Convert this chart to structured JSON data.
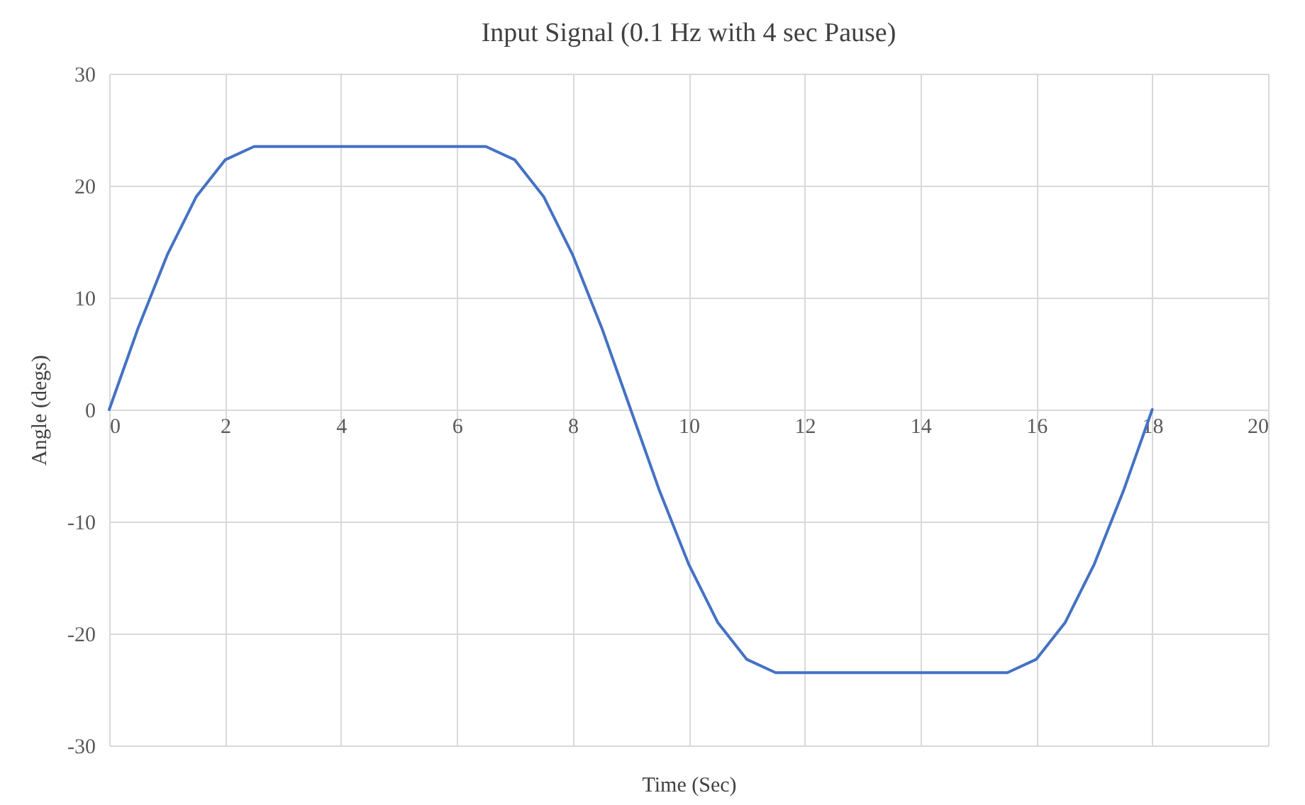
{
  "chart_data": {
    "type": "line",
    "title": "Input Signal (0.1 Hz with 4 sec Pause)",
    "xlabel": "Time (Sec)",
    "ylabel": "Angle (degs)",
    "x": [
      0,
      0.5,
      1,
      1.5,
      2,
      2.5,
      6.5,
      7,
      7.5,
      8,
      8.5,
      9,
      9.5,
      10,
      10.5,
      11,
      11.5,
      15.5,
      16,
      16.5,
      17,
      17.5,
      18
    ],
    "series": [
      {
        "color": "#4472c4",
        "values": [
          0,
          7.3,
          13.8,
          19,
          22.3,
          23.5,
          23.5,
          22.3,
          19,
          13.8,
          7.3,
          0,
          -7.3,
          -13.8,
          -19,
          -22.3,
          -23.5,
          -23.5,
          -22.3,
          -19,
          -13.8,
          -7.3,
          0
        ]
      }
    ],
    "xlim": [
      0,
      20
    ],
    "xticks": [
      0,
      2,
      4,
      6,
      8,
      10,
      12,
      14,
      16,
      18,
      20
    ],
    "ylim": [
      -30,
      30
    ],
    "yticks": [
      -30,
      -20,
      -10,
      0,
      10,
      20,
      30
    ],
    "grid": true,
    "legend": false,
    "marker": "none",
    "line_style": "solid"
  }
}
